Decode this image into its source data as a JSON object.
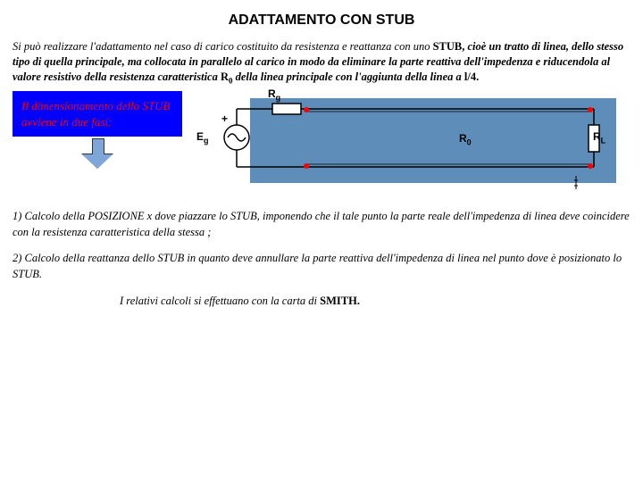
{
  "title": "ADATTAMENTO CON STUB",
  "intro_html": "Si può realizzare l'adattamento nel caso di carico costituito da resistenza e reattanza con uno <span class='upright'>STUB,</span> <b>cioè un tratto di linea, dello stesso tipo di quella principale, ma collocata in parallelo al carico in modo da eliminare la parte reattiva dell'impedenza e riducendola al valore resistivo della resistenza caratteristica</b> <span class='upright'>R<span class='sub'>0</span></span> <b>della linea principale con l'aggiunta della linea a</b> <span class='upright'>l/4.</span>",
  "callout": "Il dimensionamento dello STUB avviene in due fasi:",
  "circuit": {
    "colors": {
      "bg": "#5f8dba",
      "node": "#ff0000",
      "stroke": "#000000"
    },
    "labels": {
      "Rg": "R",
      "Rg_sub": "g",
      "Eg": "E",
      "Eg_sub": "g",
      "plus": "+",
      "R0": "R",
      "R0_sub": "0",
      "RL": "R",
      "RL_sub": "L"
    }
  },
  "step1": "1) Calcolo della POSIZIONE x dove piazzare lo STUB, imponendo che il tale punto la parte reale dell'impedenza di linea deve coincidere con la resistenza caratteristica della stessa ;",
  "step2": "2) Calcolo della reattanza dello STUB in quanto deve annullare la parte reattiva dell'impedenza di linea nel punto dove è posizionato lo STUB.",
  "closing_html": "I relativi calcoli si effettuano con la carta di <span class='upright'>SMITH.</span>"
}
